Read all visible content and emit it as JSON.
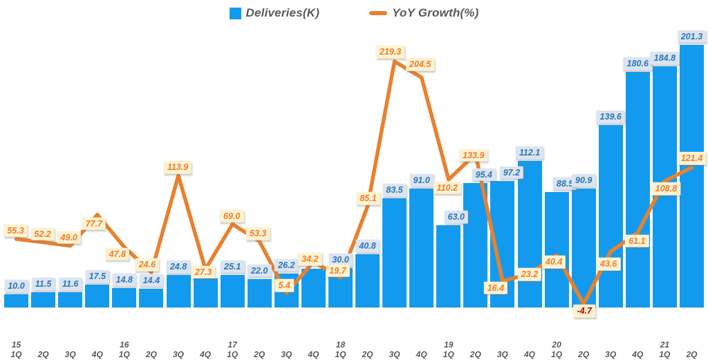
{
  "legend_position": "top-center",
  "colors": {
    "bar_blue": "#129BEE",
    "line_orange": "#E8812F",
    "bar_label_bg": "#DBE5F1",
    "bar_label_text": "#2E75B6",
    "yoy_label_bg": "#FDF2D0",
    "yoy_label_text": "#ED7D31",
    "yoy_negative_text": "#C00000",
    "axis_text": "#595959"
  },
  "chart_data": {
    "type": "combo-bar-line",
    "title": "",
    "xlabel": "",
    "ylabel": "",
    "gridlines": false,
    "y_axis_visible": false,
    "x_quarters": [
      "1Q",
      "2Q",
      "3Q",
      "4Q",
      "1Q",
      "2Q",
      "3Q",
      "4Q",
      "1Q",
      "2Q",
      "3Q",
      "4Q",
      "1Q",
      "2Q",
      "3Q",
      "4Q",
      "1Q",
      "2Q",
      "3Q",
      "4Q",
      "1Q",
      "2Q",
      "3Q",
      "4Q",
      "1Q",
      "2Q"
    ],
    "x_year_marks": [
      {
        "index": 0,
        "label": "15"
      },
      {
        "index": 4,
        "label": "16"
      },
      {
        "index": 8,
        "label": "17"
      },
      {
        "index": 12,
        "label": "18"
      },
      {
        "index": 16,
        "label": "19"
      },
      {
        "index": 20,
        "label": "20"
      },
      {
        "index": 24,
        "label": "21"
      }
    ],
    "series": [
      {
        "name": "Deliveries(K)",
        "type": "bar",
        "ylim": [
          0,
          210
        ],
        "values": [
          10.0,
          11.5,
          11.6,
          17.5,
          14.8,
          14.4,
          24.8,
          22.2,
          25.1,
          22.0,
          26.2,
          29.9,
          30.0,
          40.8,
          83.5,
          91.0,
          63.0,
          95.4,
          97.2,
          112.1,
          88.5,
          90.9,
          139.6,
          180.6,
          184.8,
          201.3
        ],
        "labels_hidden_at": [
          7,
          11
        ]
      },
      {
        "name": "YoY Growth(%)",
        "type": "line",
        "ylim": [
          -20,
          240
        ],
        "values": [
          55.3,
          52.2,
          49.0,
          77.7,
          47.8,
          24.6,
          113.9,
          27.3,
          69.0,
          53.3,
          5.4,
          34.2,
          19.7,
          85.1,
          219.3,
          204.5,
          110.2,
          133.9,
          16.4,
          23.2,
          40.4,
          -4.7,
          43.6,
          61.1,
          108.8,
          121.4
        ]
      }
    ]
  }
}
